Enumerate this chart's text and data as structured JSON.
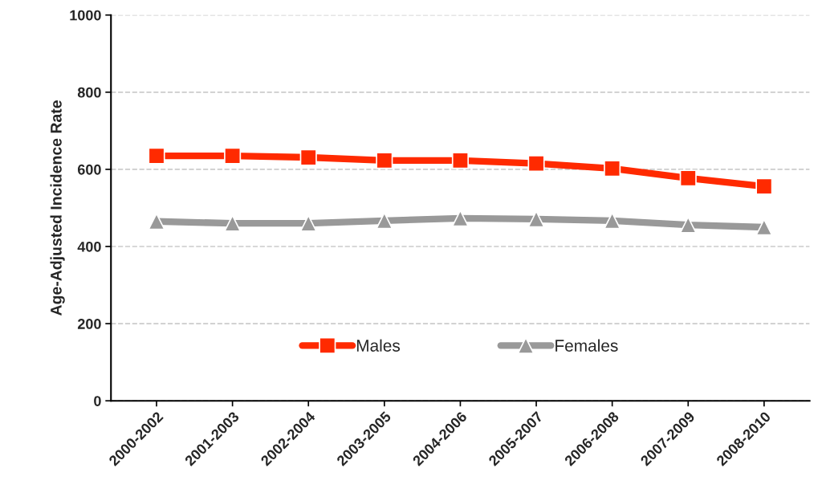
{
  "chart_data": {
    "type": "line",
    "ylabel": "Age-Adjusted Incidence Rate",
    "categories": [
      "2000-2002",
      "2001-2003",
      "2002-2004",
      "2003-2005",
      "2004-2006",
      "2005-2007",
      "2006-2008",
      "2007-2009",
      "2008-2010"
    ],
    "series": [
      {
        "name": "Males",
        "color": "#ff2a00",
        "marker": "square",
        "values": [
          635,
          635,
          631,
          623,
          623,
          615,
          602,
          577,
          556
        ]
      },
      {
        "name": "Females",
        "color": "#999999",
        "marker": "triangle",
        "values": [
          465,
          460,
          460,
          467,
          473,
          471,
          467,
          456,
          450
        ]
      }
    ],
    "ylim": [
      0,
      1000
    ],
    "yticks": [
      0,
      200,
      400,
      600,
      800,
      1000
    ],
    "grid": "y",
    "legend": "bottom",
    "line_style": "solid"
  }
}
